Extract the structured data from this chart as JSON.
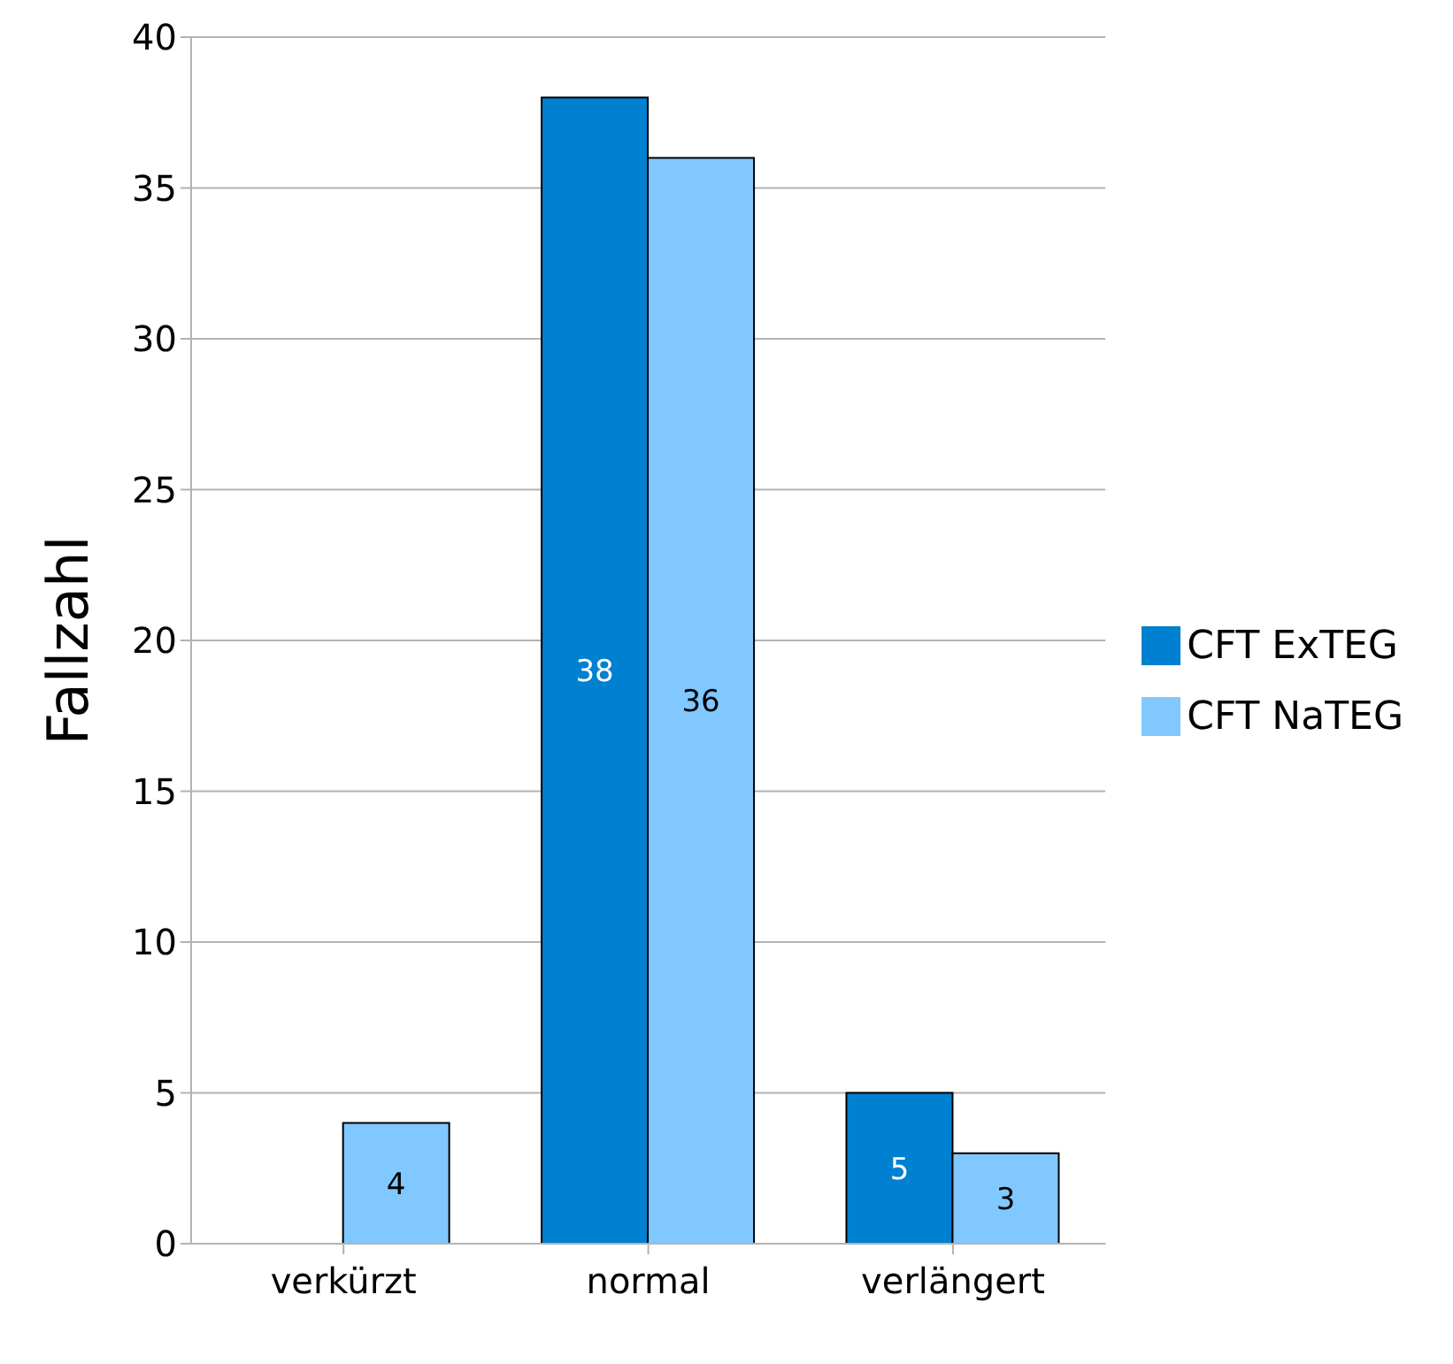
{
  "chart_data": {
    "type": "bar",
    "ylabel": "Fallzahl",
    "categories": [
      "verkürzt",
      "normal",
      "verlängert"
    ],
    "series": [
      {
        "name": "CFT ExTEG",
        "color": "#0080d0",
        "values": [
          0,
          38,
          5
        ],
        "value_labels": [
          null,
          "38",
          "5"
        ]
      },
      {
        "name": "CFT NaTEG",
        "color": "#80c8ff",
        "values": [
          4,
          36,
          3
        ],
        "value_labels": [
          "4",
          "36",
          "3"
        ]
      }
    ],
    "ylim": [
      0,
      40
    ],
    "yticks": [
      0,
      5,
      10,
      15,
      20,
      25,
      30,
      35,
      40
    ],
    "grid": "y",
    "legend": "right"
  }
}
